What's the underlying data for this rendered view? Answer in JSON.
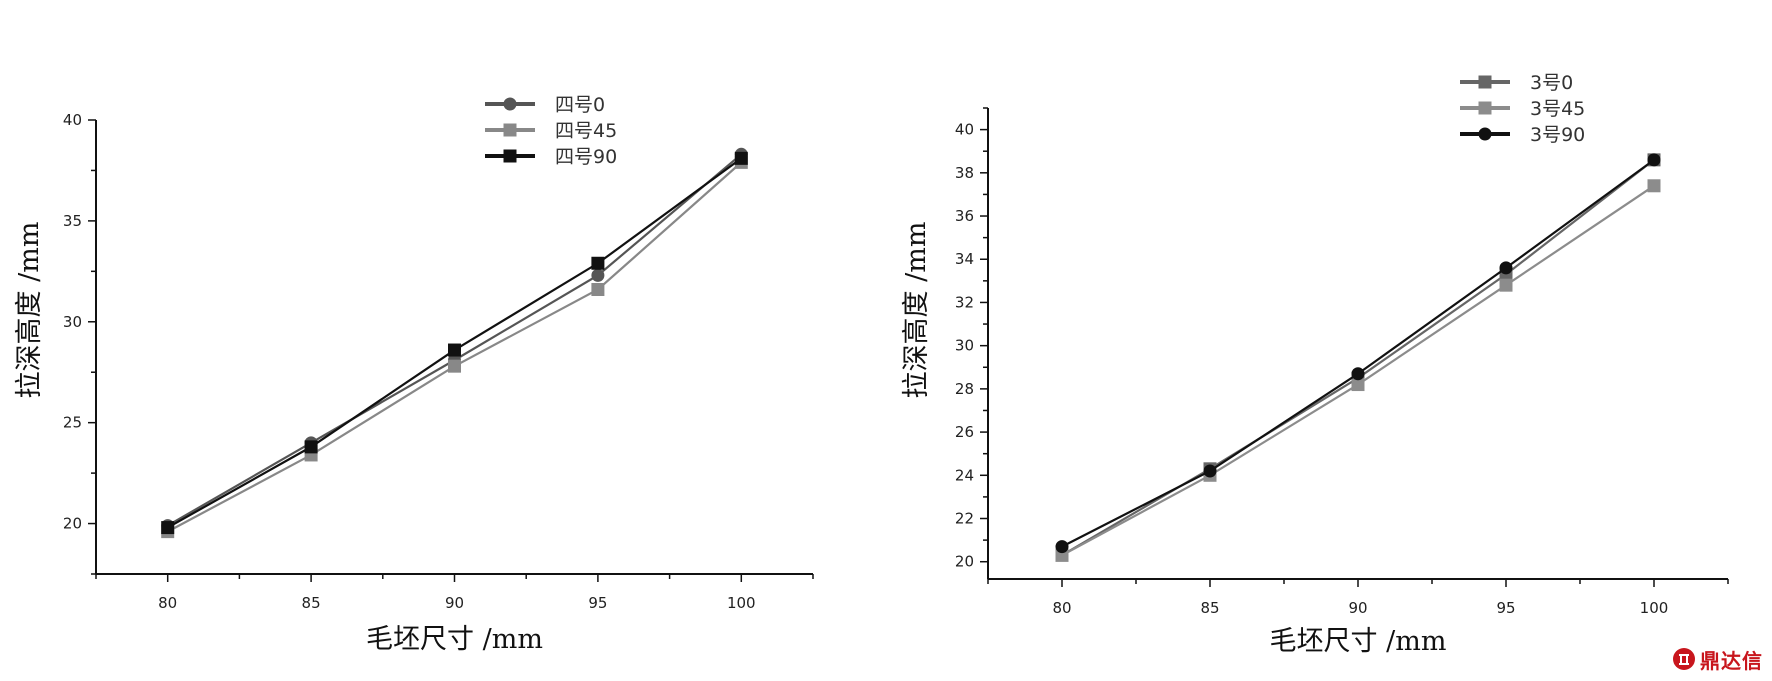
{
  "chart_data": [
    {
      "type": "line",
      "xlabel": "毛坯尺寸 /mm",
      "ylabel": "拉深高度 /mm",
      "x": [
        80,
        85,
        90,
        95,
        100
      ],
      "xticks": [
        "80",
        "85",
        "90",
        "95",
        "100"
      ],
      "xlim": [
        77.5,
        102.5
      ],
      "ylim": [
        17.5,
        40
      ],
      "yticks": [
        "20",
        "25",
        "30",
        "35",
        "40"
      ],
      "grid": false,
      "legend_position": "top-center",
      "series": [
        {
          "name": "四号0",
          "values": [
            19.9,
            24.0,
            28.1,
            32.3,
            38.3
          ],
          "color": "#555555",
          "marker": "circle"
        },
        {
          "name": "四号45",
          "values": [
            19.6,
            23.4,
            27.8,
            31.6,
            37.9
          ],
          "color": "#888888",
          "marker": "square"
        },
        {
          "name": "四号90",
          "values": [
            19.8,
            23.8,
            28.6,
            32.9,
            38.1
          ],
          "color": "#111111",
          "marker": "square"
        }
      ]
    },
    {
      "type": "line",
      "xlabel": "毛坯尺寸 /mm",
      "ylabel": "拉深高度 /mm",
      "x": [
        80,
        85,
        90,
        95,
        100
      ],
      "xticks": [
        "80",
        "85",
        "90",
        "95",
        "100"
      ],
      "xlim": [
        77.5,
        102.5
      ],
      "ylim": [
        19.2,
        41
      ],
      "yticks": [
        "20",
        "22",
        "24",
        "26",
        "28",
        "30",
        "32",
        "34",
        "36",
        "38",
        "40"
      ],
      "grid": false,
      "legend_position": "top-center",
      "series": [
        {
          "name": "3号0",
          "values": [
            20.3,
            24.3,
            28.5,
            33.3,
            38.6
          ],
          "color": "#666666",
          "marker": "square"
        },
        {
          "name": "3号45",
          "values": [
            20.3,
            24.0,
            28.2,
            32.8,
            37.4
          ],
          "color": "#8c8c8c",
          "marker": "square"
        },
        {
          "name": "3号90",
          "values": [
            20.7,
            24.2,
            28.7,
            33.6,
            38.6
          ],
          "color": "#111111",
          "marker": "circle"
        }
      ]
    }
  ],
  "watermark": {
    "text": "鼎达信",
    "color": "#c8161d",
    "icon": "logo-icon"
  }
}
